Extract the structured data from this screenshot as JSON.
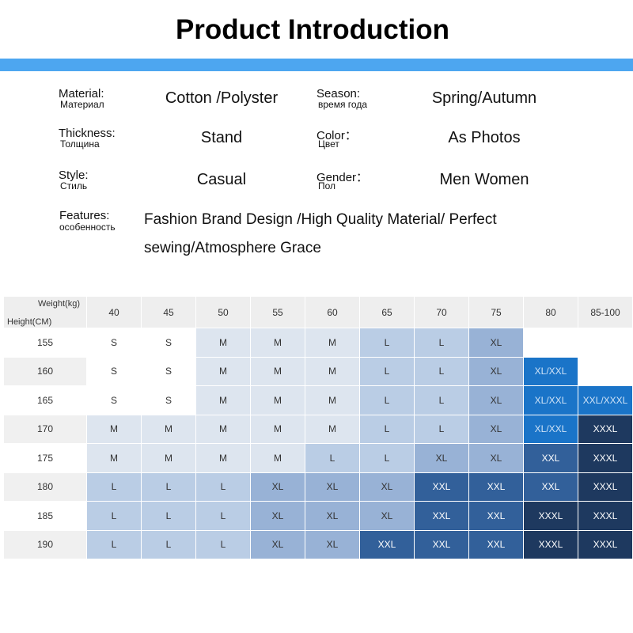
{
  "header": {
    "title": "Product Introduction"
  },
  "attributes": [
    {
      "label": "Material:",
      "label_ru": "Материал",
      "value": "Cotton /Polyster"
    },
    {
      "label": "Season:",
      "label_ru": "время года",
      "value": "Spring/Autumn"
    },
    {
      "label": "Thickness:",
      "label_ru": "Толщина",
      "value": "Stand"
    },
    {
      "label": "Color：",
      "label_ru": "Цвет",
      "value": "As Photos"
    },
    {
      "label": "Style:",
      "label_ru": "Стиль",
      "value": "Casual"
    },
    {
      "label": "Gender：",
      "label_ru": "Пол",
      "value": "Men Women"
    }
  ],
  "features": {
    "label": "Features:",
    "label_ru": "особенность",
    "lines": [
      "Fashion Brand Design /High Quality Material/ Perfect",
      "sewing/Atmosphere Grace"
    ]
  },
  "table": {
    "weight_label": "Weight(kg)",
    "height_label": "Height(CM)",
    "weights": [
      "40",
      "45",
      "50",
      "55",
      "60",
      "65",
      "70",
      "75",
      "80",
      "85-100"
    ],
    "palette": [
      "#ffffff",
      "#dde5ef",
      "#bacde5",
      "#98b2d6",
      "#32609a",
      "#1e395f",
      "#1a74c8"
    ],
    "rows": [
      [
        "155",
        "S",
        "S",
        "M",
        "M",
        "M",
        "L",
        "L",
        "XL",
        null,
        null
      ],
      [
        "160",
        "S",
        "S",
        "M",
        "M",
        "M",
        "L",
        "L",
        "XL",
        "XL/XXL",
        null
      ],
      [
        "165",
        "S",
        "S",
        "M",
        "M",
        "M",
        "L",
        "L",
        "XL",
        "XL/XXL",
        "XXL/XXXL"
      ],
      [
        "170",
        "M",
        "M",
        "M",
        "M",
        "M",
        "L",
        "L",
        "XL",
        "XL/XXL",
        "XXXL"
      ],
      [
        "175",
        "M",
        "M",
        "M",
        "M",
        "L",
        "L",
        "XL",
        "XL",
        "XXL",
        "XXXL"
      ],
      [
        "180",
        "L",
        "L",
        "L",
        "XL",
        "XL",
        "XL",
        "XXL",
        "XXL",
        "XXL",
        "XXXL"
      ],
      [
        "185",
        "L",
        "L",
        "L",
        "XL",
        "XL",
        "XL",
        "XXL",
        "XXL",
        "XXXL",
        "XXXL"
      ],
      [
        "190",
        "L",
        "L",
        "L",
        "XL",
        "XL",
        "XXL",
        "XXL",
        "XXL",
        "XXXL",
        "XXXL"
      ]
    ],
    "shades": [
      [
        0,
        0,
        1,
        1,
        1,
        2,
        2,
        3,
        0,
        0
      ],
      [
        0,
        0,
        1,
        1,
        1,
        2,
        2,
        3,
        6,
        0
      ],
      [
        0,
        0,
        1,
        1,
        1,
        2,
        2,
        3,
        6,
        6
      ],
      [
        1,
        1,
        1,
        1,
        1,
        2,
        2,
        3,
        6,
        5
      ],
      [
        1,
        1,
        1,
        1,
        2,
        2,
        3,
        3,
        4,
        5
      ],
      [
        2,
        2,
        2,
        3,
        3,
        3,
        4,
        4,
        4,
        5
      ],
      [
        2,
        2,
        2,
        3,
        3,
        3,
        4,
        4,
        5,
        5
      ],
      [
        2,
        2,
        2,
        3,
        3,
        4,
        4,
        4,
        5,
        5
      ]
    ]
  }
}
